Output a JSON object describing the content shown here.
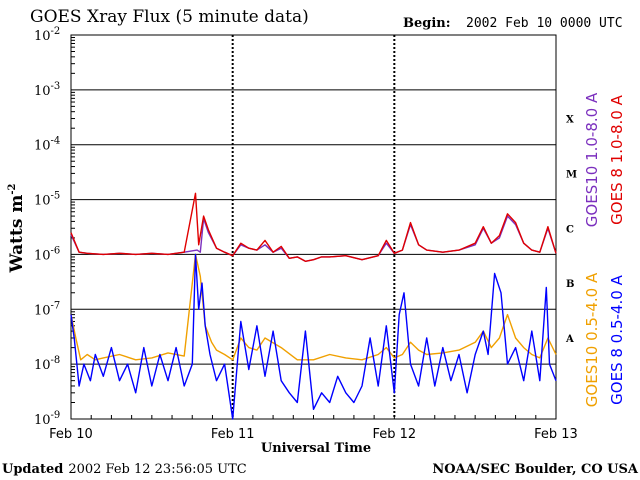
{
  "header": {
    "title": "GOES Xray Flux (5 minute data)",
    "begin_label": "Begin:",
    "begin_value": "2002 Feb 10 0000 UTC"
  },
  "footer": {
    "updated_label": "Updated",
    "updated_value": "2002 Feb 12 23:56:05 UTC",
    "credit": "NOAA/SEC Boulder, CO USA"
  },
  "chart_data": {
    "type": "line",
    "title": "GOES Xray Flux (5 minute data)",
    "xlabel": "Universal Time",
    "ylabel": "Watts m",
    "ylabel_sup": "-2",
    "yscale": "log",
    "ylim": [
      1e-09,
      0.01
    ],
    "xlim_days": [
      0,
      3
    ],
    "y_ticks": [
      {
        "base": "10",
        "exp": "-9",
        "value": 1e-09
      },
      {
        "base": "10",
        "exp": "-8",
        "value": 1e-08
      },
      {
        "base": "10",
        "exp": "-7",
        "value": 1e-07
      },
      {
        "base": "10",
        "exp": "-6",
        "value": 1e-06
      },
      {
        "base": "10",
        "exp": "-5",
        "value": 1e-05
      },
      {
        "base": "10",
        "exp": "-4",
        "value": 0.0001
      },
      {
        "base": "10",
        "exp": "-3",
        "value": 0.001
      },
      {
        "base": "10",
        "exp": "-2",
        "value": 0.01
      }
    ],
    "x_ticks": [
      {
        "label": "Feb 10",
        "day": 0
      },
      {
        "label": "Feb 11",
        "day": 1
      },
      {
        "label": "Feb 12",
        "day": 2
      },
      {
        "label": "Feb 13",
        "day": 3
      }
    ],
    "flare_classes": [
      {
        "label": "A",
        "flux": 3e-08
      },
      {
        "label": "B",
        "flux": 3e-07
      },
      {
        "label": "C",
        "flux": 3e-06
      },
      {
        "label": "M",
        "flux": 3e-05
      },
      {
        "label": "X",
        "flux": 0.0003
      }
    ],
    "colors": {
      "goes10_long": "#7b2fbe",
      "goes8_long": "#e00000",
      "goes10_short": "#f0a000",
      "goes8_short": "#0000ff",
      "grid": "#000000"
    },
    "series": [
      {
        "name": "GOES10 1.0-8.0 A",
        "color": "#7b2fbe",
        "x": [
          0.0,
          0.05,
          0.1,
          0.2,
          0.3,
          0.4,
          0.5,
          0.6,
          0.7,
          0.78,
          0.8,
          0.82,
          0.85,
          0.9,
          0.95,
          1.0,
          1.05,
          1.1,
          1.15,
          1.2,
          1.25,
          1.3,
          1.35,
          1.4,
          1.45,
          1.5,
          1.55,
          1.6,
          1.7,
          1.8,
          1.9,
          1.95,
          2.0,
          2.05,
          2.1,
          2.15,
          2.2,
          2.3,
          2.4,
          2.5,
          2.55,
          2.6,
          2.65,
          2.7,
          2.75,
          2.8,
          2.85,
          2.9,
          2.95,
          3.0
        ],
        "values": [
          2.3e-06,
          1.1e-06,
          1.05e-06,
          1e-06,
          1.05e-06,
          1e-06,
          1.05e-06,
          1e-06,
          1.1e-06,
          1.2e-06,
          1.1e-06,
          4.5e-06,
          2.5e-06,
          1.3e-06,
          1.1e-06,
          9.5e-07,
          1.5e-06,
          1.3e-06,
          1.2e-06,
          1.5e-06,
          1.1e-06,
          1.3e-06,
          8.5e-07,
          9e-07,
          7.5e-07,
          8e-07,
          9e-07,
          9e-07,
          9.5e-07,
          8e-07,
          9.5e-07,
          1.6e-06,
          1.05e-06,
          1.2e-06,
          3.5e-06,
          1.5e-06,
          1.2e-06,
          1.1e-06,
          1.2e-06,
          1.5e-06,
          3e-06,
          1.6e-06,
          2e-06,
          5e-06,
          3.5e-06,
          1.6e-06,
          1.2e-06,
          1.1e-06,
          3e-06,
          1.05e-06
        ]
      },
      {
        "name": "GOES 8 1.0-8.0 A",
        "color": "#e00000",
        "x": [
          0.0,
          0.05,
          0.1,
          0.2,
          0.3,
          0.4,
          0.5,
          0.6,
          0.7,
          0.77,
          0.79,
          0.82,
          0.85,
          0.9,
          0.95,
          1.0,
          1.05,
          1.1,
          1.15,
          1.2,
          1.25,
          1.3,
          1.35,
          1.4,
          1.45,
          1.5,
          1.55,
          1.6,
          1.7,
          1.8,
          1.9,
          1.95,
          2.0,
          2.05,
          2.1,
          2.15,
          2.2,
          2.3,
          2.4,
          2.5,
          2.55,
          2.6,
          2.65,
          2.7,
          2.75,
          2.8,
          2.85,
          2.9,
          2.95,
          3.0
        ],
        "values": [
          2.5e-06,
          1.1e-06,
          1.05e-06,
          1e-06,
          1.05e-06,
          1e-06,
          1.05e-06,
          1e-06,
          1.1e-06,
          1.3e-05,
          1.5e-06,
          5e-06,
          2.8e-06,
          1.3e-06,
          1.1e-06,
          9.5e-07,
          1.6e-06,
          1.3e-06,
          1.2e-06,
          1.8e-06,
          1.1e-06,
          1.4e-06,
          8.5e-07,
          9e-07,
          7.5e-07,
          8e-07,
          9e-07,
          9e-07,
          9.5e-07,
          8e-07,
          9.5e-07,
          1.8e-06,
          1.05e-06,
          1.2e-06,
          3.8e-06,
          1.5e-06,
          1.2e-06,
          1.1e-06,
          1.2e-06,
          1.6e-06,
          3.2e-06,
          1.6e-06,
          2.2e-06,
          5.5e-06,
          3.8e-06,
          1.6e-06,
          1.2e-06,
          1.1e-06,
          3.2e-06,
          1.05e-06
        ]
      },
      {
        "name": "GOES10 0.5-4.0 A",
        "color": "#f0a000",
        "x": [
          0.0,
          0.03,
          0.06,
          0.1,
          0.15,
          0.2,
          0.3,
          0.4,
          0.5,
          0.6,
          0.7,
          0.77,
          0.8,
          0.83,
          0.87,
          0.9,
          0.95,
          1.0,
          1.05,
          1.1,
          1.15,
          1.2,
          1.3,
          1.4,
          1.5,
          1.6,
          1.7,
          1.8,
          1.9,
          1.95,
          2.0,
          2.05,
          2.1,
          2.15,
          2.2,
          2.3,
          2.4,
          2.5,
          2.55,
          2.6,
          2.65,
          2.7,
          2.75,
          2.8,
          2.85,
          2.9,
          2.95,
          3.0
        ],
        "values": [
          8e-08,
          3e-08,
          1.2e-08,
          1.5e-08,
          1.2e-08,
          1.3e-08,
          1.5e-08,
          1.2e-08,
          1.3e-08,
          1.6e-08,
          1.4e-08,
          1e-06,
          4e-07,
          5e-08,
          2.5e-08,
          1.8e-08,
          1.5e-08,
          1.2e-08,
          3e-08,
          2e-08,
          1.8e-08,
          3e-08,
          2e-08,
          1.2e-08,
          1.2e-08,
          1.5e-08,
          1.3e-08,
          1.2e-08,
          1.5e-08,
          2e-08,
          1.3e-08,
          1.5e-08,
          2.5e-08,
          1.8e-08,
          1.5e-08,
          1.6e-08,
          1.8e-08,
          2.5e-08,
          4e-08,
          2e-08,
          3e-08,
          8e-08,
          3e-08,
          2e-08,
          1.5e-08,
          1.3e-08,
          3e-08,
          1.5e-08
        ]
      },
      {
        "name": "GOES 8 0.5-4.0 A",
        "color": "#0000ff",
        "x": [
          0.0,
          0.02,
          0.05,
          0.08,
          0.12,
          0.15,
          0.2,
          0.25,
          0.3,
          0.35,
          0.4,
          0.45,
          0.5,
          0.55,
          0.6,
          0.65,
          0.7,
          0.75,
          0.77,
          0.79,
          0.81,
          0.83,
          0.86,
          0.9,
          0.95,
          1.0,
          1.05,
          1.1,
          1.15,
          1.2,
          1.25,
          1.3,
          1.35,
          1.4,
          1.45,
          1.5,
          1.55,
          1.6,
          1.65,
          1.7,
          1.75,
          1.8,
          1.85,
          1.9,
          1.95,
          2.0,
          2.03,
          2.06,
          2.1,
          2.15,
          2.2,
          2.25,
          2.3,
          2.35,
          2.4,
          2.45,
          2.5,
          2.55,
          2.58,
          2.62,
          2.66,
          2.7,
          2.75,
          2.8,
          2.85,
          2.9,
          2.94,
          2.96,
          3.0
        ],
        "values": [
          8e-08,
          3e-08,
          4e-09,
          1e-08,
          5e-09,
          1.5e-08,
          6e-09,
          2e-08,
          5e-09,
          1e-08,
          3e-09,
          2e-08,
          4e-09,
          1.5e-08,
          5e-09,
          2e-08,
          4e-09,
          1e-08,
          1e-06,
          1e-07,
          3e-07,
          5e-08,
          1.5e-08,
          5e-09,
          1e-08,
          1e-09,
          6e-08,
          8e-09,
          5e-08,
          6e-09,
          4e-08,
          5e-09,
          3e-09,
          2e-09,
          4e-08,
          1.5e-09,
          3e-09,
          2e-09,
          6e-09,
          3e-09,
          2e-09,
          4e-09,
          3e-08,
          4e-09,
          5e-08,
          3e-09,
          8e-08,
          2e-07,
          1e-08,
          4e-09,
          3e-08,
          4e-09,
          2e-08,
          5e-09,
          1.5e-08,
          3e-09,
          1.5e-08,
          4e-08,
          1.5e-08,
          4.5e-07,
          2e-07,
          1e-08,
          2e-08,
          5e-09,
          4e-08,
          5e-09,
          2.5e-07,
          1e-08,
          5e-09
        ]
      }
    ]
  }
}
